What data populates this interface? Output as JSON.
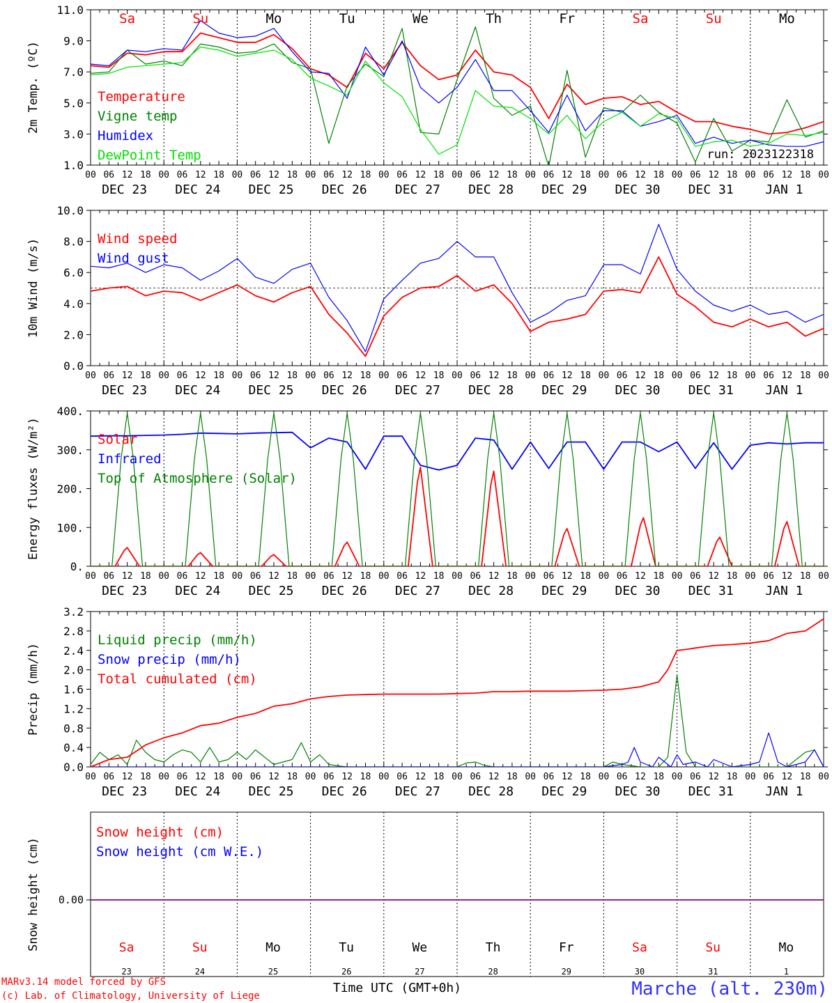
{
  "days": {
    "weekdays": [
      "Sa",
      "Su",
      "Mo",
      "Tu",
      "We",
      "Th",
      "Fr",
      "Sa",
      "Su",
      "Mo"
    ],
    "weekday_colors": [
      "#ff0000",
      "#ff0000",
      "#000000",
      "#000000",
      "#000000",
      "#000000",
      "#000000",
      "#ff0000",
      "#ff0000",
      "#000000"
    ],
    "dates": [
      "DEC 23",
      "DEC 24",
      "DEC 25",
      "DEC 26",
      "DEC 27",
      "DEC 28",
      "DEC 29",
      "DEC 30",
      "DEC 31",
      "JAN  1"
    ],
    "day_numbers": [
      "23",
      "24",
      "25",
      "26",
      "27",
      "28",
      "29",
      "30",
      "31",
      "1"
    ],
    "hour_labels": [
      "00",
      "06",
      "12",
      "18"
    ],
    "final_hour_label": "00"
  },
  "colors": {
    "red": "#ff0000",
    "green": "#008000",
    "blue": "#0000ff",
    "lightgreen": "#00e000",
    "purple": "#800080",
    "title_blue": "#3030ff"
  },
  "run_label": "run: 2023122318",
  "footer": {
    "model_line1": "MARv3.14 model forced by GFS",
    "model_line2": "(c) Lab. of Climatology, University of Liege",
    "time_axis": "Time UTC (GMT+0h)",
    "station": "Marche (alt. 230m)"
  },
  "chart_data": [
    {
      "id": "temperature",
      "type": "line",
      "ylabel": "2m Temp. (ºC)",
      "ylim": [
        1.0,
        11.0
      ],
      "yticks": [
        "1.0",
        "3.0",
        "5.0",
        "7.0",
        "9.0",
        "11.0"
      ],
      "xlim_hours": [
        0,
        240
      ],
      "legend": [
        "Temperature",
        "Vigne temp",
        "Humidex",
        "DewPoint Temp"
      ],
      "series": [
        {
          "name": "Temperature",
          "color": "#ff0000",
          "x": [
            0,
            6,
            12,
            18,
            24,
            30,
            36,
            42,
            48,
            54,
            60,
            66,
            72,
            78,
            84,
            90,
            96,
            102,
            108,
            114,
            120,
            126,
            132,
            138,
            144,
            150,
            156,
            162,
            168,
            174,
            180,
            186,
            192,
            198,
            204,
            210,
            216,
            222,
            228,
            234,
            240
          ],
          "y": [
            7.4,
            7.3,
            8.2,
            8.1,
            8.3,
            8.3,
            9.5,
            9.2,
            8.9,
            8.9,
            9.4,
            8.5,
            7.2,
            6.8,
            6.0,
            8.2,
            7.2,
            8.9,
            7.4,
            6.5,
            6.8,
            8.4,
            7.0,
            6.8,
            6.0,
            4.0,
            6.2,
            4.9,
            5.3,
            5.4,
            4.9,
            5.1,
            4.4,
            3.8,
            3.8,
            3.5,
            3.3,
            3.0,
            3.1,
            3.4,
            3.8
          ]
        },
        {
          "name": "Vigne temp",
          "color": "#008000",
          "x": [
            0,
            6,
            12,
            18,
            24,
            30,
            36,
            42,
            48,
            54,
            60,
            66,
            72,
            78,
            84,
            90,
            96,
            102,
            108,
            114,
            120,
            126,
            132,
            138,
            144,
            150,
            156,
            162,
            168,
            174,
            180,
            186,
            192,
            198,
            204,
            210,
            216,
            222,
            228,
            234,
            240
          ],
          "y": [
            6.9,
            7.0,
            8.4,
            7.5,
            7.7,
            7.4,
            8.8,
            8.6,
            8.2,
            8.3,
            8.8,
            7.6,
            7.2,
            2.4,
            6.1,
            7.5,
            6.7,
            9.8,
            3.1,
            3.0,
            6.5,
            9.9,
            5.3,
            4.2,
            4.8,
            0.9,
            7.1,
            1.5,
            4.7,
            4.4,
            5.5,
            4.4,
            3.7,
            1.2,
            4.0,
            1.9,
            2.6,
            2.5,
            5.2,
            2.8,
            3.2
          ]
        },
        {
          "name": "Humidex",
          "color": "#0000ff",
          "x": [
            0,
            6,
            12,
            18,
            24,
            30,
            36,
            42,
            48,
            54,
            60,
            66,
            72,
            78,
            84,
            90,
            96,
            102,
            108,
            114,
            120,
            126,
            132,
            138,
            144,
            150,
            156,
            162,
            168,
            174,
            180,
            186,
            192,
            198,
            204,
            210,
            216,
            222,
            228,
            234,
            240
          ],
          "y": [
            7.5,
            7.4,
            8.4,
            8.3,
            8.5,
            8.4,
            10.3,
            9.5,
            9.2,
            9.3,
            9.8,
            8.3,
            7.0,
            6.9,
            5.3,
            8.6,
            6.8,
            9.0,
            6.0,
            5.0,
            6.0,
            7.8,
            5.8,
            5.8,
            4.5,
            3.1,
            5.5,
            3.2,
            4.5,
            4.5,
            3.5,
            3.8,
            4.2,
            2.4,
            2.8,
            2.4,
            2.6,
            2.3,
            2.2,
            2.2,
            2.5
          ]
        },
        {
          "name": "DewPoint Temp",
          "color": "#00e000",
          "x": [
            0,
            6,
            12,
            18,
            24,
            30,
            36,
            42,
            48,
            54,
            60,
            66,
            72,
            78,
            84,
            90,
            96,
            102,
            108,
            114,
            120,
            126,
            132,
            138,
            144,
            150,
            156,
            162,
            168,
            174,
            180,
            186,
            192,
            198,
            204,
            210,
            216,
            222,
            228,
            234,
            240
          ],
          "y": [
            6.8,
            6.9,
            7.3,
            7.4,
            7.5,
            7.6,
            8.6,
            8.4,
            8.0,
            8.2,
            8.4,
            7.8,
            6.6,
            6.1,
            5.5,
            7.7,
            6.3,
            5.4,
            3.3,
            1.7,
            2.3,
            5.8,
            4.8,
            4.7,
            4.0,
            3.0,
            4.2,
            2.7,
            3.8,
            4.4,
            3.5,
            4.3,
            4.0,
            2.2,
            2.5,
            2.6,
            2.2,
            2.4,
            3.0,
            2.9,
            3.1
          ]
        }
      ]
    },
    {
      "id": "wind",
      "type": "line",
      "ylabel": "10m Wind (m/s)",
      "ylim": [
        0.0,
        10.0
      ],
      "yticks": [
        "0.0",
        "2.0",
        "4.0",
        "6.0",
        "8.0",
        "10.0"
      ],
      "reference_line": 5.0,
      "legend": [
        "Wind speed",
        "Wind gust"
      ],
      "series": [
        {
          "name": "Wind speed",
          "color": "#ff0000",
          "x": [
            0,
            6,
            12,
            18,
            24,
            30,
            36,
            42,
            48,
            54,
            60,
            66,
            72,
            78,
            84,
            90,
            96,
            102,
            108,
            114,
            120,
            126,
            132,
            138,
            144,
            150,
            156,
            162,
            168,
            174,
            180,
            186,
            192,
            198,
            204,
            210,
            216,
            222,
            228,
            234,
            240
          ],
          "y": [
            4.8,
            5.0,
            5.1,
            4.5,
            4.8,
            4.7,
            4.2,
            4.7,
            5.2,
            4.5,
            4.1,
            4.7,
            5.1,
            3.3,
            2.1,
            0.6,
            3.2,
            4.4,
            5.0,
            5.1,
            5.8,
            4.8,
            5.2,
            4.0,
            2.2,
            2.8,
            3.0,
            3.3,
            4.8,
            4.9,
            4.7,
            7.0,
            4.6,
            3.8,
            2.8,
            2.5,
            3.0,
            2.5,
            2.8,
            1.9,
            2.4
          ]
        },
        {
          "name": "Wind gust",
          "color": "#0000ff",
          "x": [
            0,
            6,
            12,
            18,
            24,
            30,
            36,
            42,
            48,
            54,
            60,
            66,
            72,
            78,
            84,
            90,
            96,
            102,
            108,
            114,
            120,
            126,
            132,
            138,
            144,
            150,
            156,
            162,
            168,
            174,
            180,
            186,
            192,
            198,
            204,
            210,
            216,
            222,
            228,
            234,
            240
          ],
          "y": [
            6.4,
            6.3,
            6.6,
            6.0,
            6.5,
            6.3,
            5.5,
            6.1,
            6.9,
            5.7,
            5.3,
            6.2,
            6.6,
            4.4,
            2.9,
            0.9,
            4.3,
            5.5,
            6.6,
            6.9,
            8.0,
            7.0,
            7.0,
            4.7,
            2.8,
            3.4,
            4.2,
            4.5,
            6.5,
            6.5,
            5.9,
            9.1,
            6.2,
            4.8,
            3.9,
            3.5,
            3.9,
            3.3,
            3.5,
            2.8,
            3.3
          ]
        }
      ]
    },
    {
      "id": "energy",
      "type": "line",
      "ylabel": "Energy fluxes (W/m²)",
      "ylim": [
        0,
        400
      ],
      "yticks": [
        "0.",
        "100.",
        "200.",
        "300.",
        "400."
      ],
      "legend": [
        "Solar",
        "Infrared",
        "Top of Atmosphere (Solar)"
      ],
      "series": [
        {
          "name": "Infrared",
          "color": "#0000ff",
          "x": [
            0,
            6,
            12,
            18,
            24,
            30,
            36,
            42,
            48,
            54,
            60,
            66,
            72,
            78,
            84,
            90,
            96,
            102,
            108,
            114,
            120,
            126,
            132,
            138,
            144,
            150,
            156,
            162,
            168,
            174,
            180,
            186,
            192,
            198,
            204,
            210,
            216,
            222,
            228,
            234,
            240
          ],
          "y": [
            335,
            336,
            336,
            337,
            338,
            340,
            343,
            342,
            341,
            343,
            344,
            345,
            305,
            330,
            320,
            250,
            335,
            335,
            260,
            248,
            260,
            330,
            325,
            250,
            320,
            252,
            320,
            320,
            250,
            320,
            320,
            295,
            320,
            252,
            318,
            250,
            312,
            318,
            315,
            318,
            318
          ]
        },
        {
          "name": "Solar",
          "color": "#ff0000",
          "peaks": [
            48,
            35,
            30,
            62,
            255,
            245,
            97,
            125,
            75,
            115
          ],
          "day_offsets_hours": [
            12,
            12,
            12,
            12,
            12,
            12,
            12,
            13,
            14,
            12
          ]
        },
        {
          "name": "Top of Atmosphere (Solar)",
          "color": "#008000",
          "peak": 395
        }
      ]
    },
    {
      "id": "precip",
      "type": "line",
      "ylabel": "Precip (mm/h)",
      "ylim": [
        0.0,
        3.2
      ],
      "yticks": [
        "0.0",
        "0.4",
        "0.8",
        "1.2",
        "1.6",
        "2.0",
        "2.4",
        "2.8",
        "3.2"
      ],
      "legend": [
        "Liquid precip (mm/h)",
        "Snow precip (mm/h)",
        "Total cumulated (cm)"
      ],
      "series": [
        {
          "name": "Liquid precip (mm/h)",
          "color": "#008000",
          "x": [
            0,
            3,
            6,
            9,
            12,
            15,
            18,
            21,
            24,
            27,
            30,
            33,
            36,
            39,
            42,
            45,
            48,
            51,
            54,
            57,
            60,
            63,
            66,
            69,
            72,
            75,
            78,
            81,
            84,
            90,
            96,
            102,
            108,
            114,
            120,
            123,
            126,
            129,
            132,
            138,
            144,
            150,
            156,
            162,
            168,
            171,
            174,
            180,
            186,
            189,
            192,
            195,
            198,
            204,
            210,
            216,
            222,
            228,
            234,
            237,
            240
          ],
          "y": [
            0.05,
            0.3,
            0.15,
            0.25,
            0.05,
            0.55,
            0.3,
            0.15,
            0.1,
            0.25,
            0.35,
            0.3,
            0.1,
            0.4,
            0.1,
            0.15,
            0.3,
            0.15,
            0.35,
            0.2,
            0.05,
            0.1,
            0.15,
            0.5,
            0.1,
            0.25,
            0.05,
            0.02,
            0.0,
            0.0,
            0.0,
            0.0,
            0.0,
            0.0,
            0.0,
            0.08,
            0.1,
            0.03,
            0.0,
            0.0,
            0.0,
            0.0,
            0.0,
            0.0,
            0.0,
            0.1,
            0.05,
            0.0,
            0.0,
            0.2,
            1.9,
            0.3,
            0.0,
            0.0,
            0.0,
            0.0,
            0.0,
            0.0,
            0.3,
            0.35,
            0.0
          ]
        },
        {
          "name": "Snow precip (mm/h)",
          "color": "#0000ff",
          "x": [
            0,
            12,
            24,
            36,
            48,
            60,
            72,
            84,
            96,
            108,
            120,
            132,
            144,
            156,
            168,
            174,
            176,
            178,
            180,
            184,
            186,
            190,
            192,
            194,
            198,
            202,
            204,
            210,
            216,
            219,
            222,
            225,
            228,
            234,
            237,
            240
          ],
          "y": [
            0.0,
            0.0,
            0.0,
            0.0,
            0.0,
            0.0,
            0.0,
            0.0,
            0.0,
            0.0,
            0.0,
            0.0,
            0.0,
            0.0,
            0.0,
            0.05,
            0.1,
            0.4,
            0.1,
            0.0,
            0.2,
            0.0,
            0.25,
            0.05,
            0.1,
            0.0,
            0.15,
            0.0,
            0.05,
            0.1,
            0.7,
            0.1,
            0.0,
            0.1,
            0.35,
            0.0
          ]
        },
        {
          "name": "Total cumulated (cm)",
          "color": "#ff0000",
          "x": [
            0,
            6,
            12,
            18,
            24,
            30,
            36,
            42,
            48,
            54,
            60,
            66,
            72,
            78,
            84,
            90,
            96,
            102,
            108,
            114,
            120,
            126,
            132,
            138,
            144,
            150,
            156,
            162,
            168,
            174,
            180,
            186,
            189,
            192,
            195,
            198,
            204,
            210,
            216,
            222,
            228,
            234,
            240
          ],
          "y": [
            0.0,
            0.15,
            0.2,
            0.45,
            0.6,
            0.7,
            0.85,
            0.9,
            1.02,
            1.1,
            1.25,
            1.3,
            1.4,
            1.45,
            1.48,
            1.49,
            1.5,
            1.5,
            1.5,
            1.5,
            1.51,
            1.52,
            1.55,
            1.55,
            1.56,
            1.56,
            1.56,
            1.57,
            1.58,
            1.6,
            1.65,
            1.75,
            2.0,
            2.4,
            2.42,
            2.45,
            2.5,
            2.52,
            2.55,
            2.6,
            2.75,
            2.8,
            3.05
          ]
        }
      ]
    },
    {
      "id": "snow",
      "type": "line",
      "ylabel": "Snow height (cm)",
      "yticks": [
        "0.00"
      ],
      "legend": [
        "Snow height (cm)",
        "Snow height (cm W.E.)"
      ],
      "series": [
        {
          "name": "Snow height (cm)",
          "color": "#ff0000",
          "x": [
            0,
            240
          ],
          "y": [
            0.0,
            0.0
          ]
        },
        {
          "name": "Snow height (cm W.E.)",
          "color": "#0000ff",
          "x": [
            0,
            240
          ],
          "y": [
            0.0,
            0.0
          ]
        }
      ]
    }
  ]
}
